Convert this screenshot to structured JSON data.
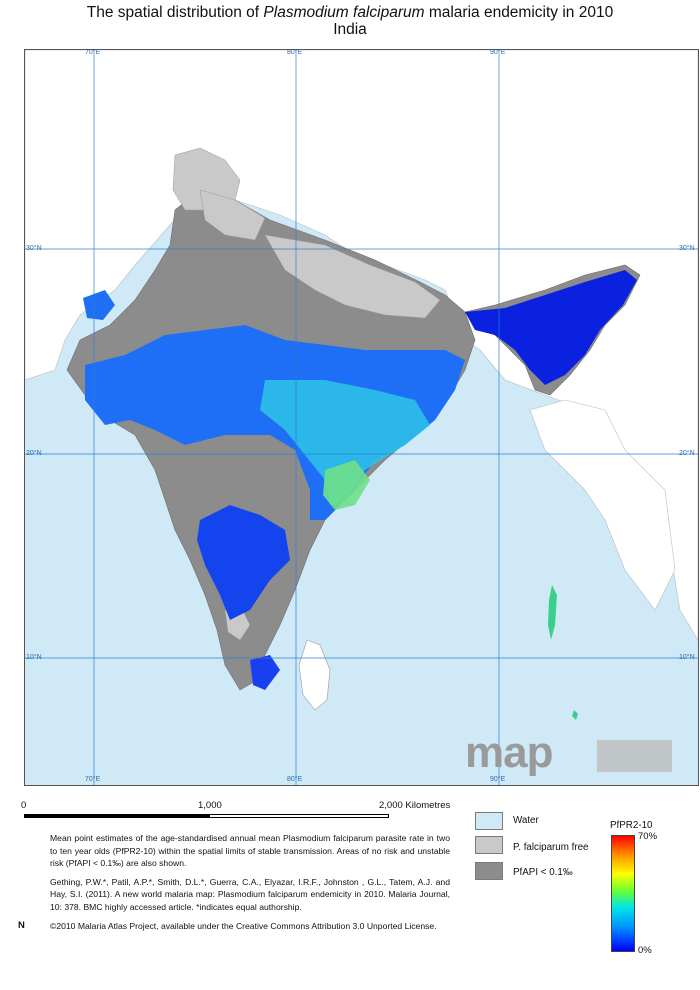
{
  "title": {
    "line1_pre": "The spatial distribution of ",
    "line1_italic": "Plasmodium falciparum",
    "line1_post": " malaria endemicity in 2010",
    "line2": "India"
  },
  "map": {
    "grid_labels": {
      "lon_70": "70°E",
      "lon_80": "80°E",
      "lon_90": "90°E",
      "lat_30": "30°N",
      "lat_20": "20°N",
      "lat_10": "10°N"
    },
    "watermark": "map",
    "colors": {
      "water": "#cfe9f7",
      "pf_free": "#c9c9c9",
      "api_low": "#8c8c8c",
      "land_outside": "#ffffff"
    }
  },
  "scale_bar": {
    "start": "0",
    "mid": "1,000",
    "end": "2,000  Kilometres"
  },
  "description": {
    "para1": "Mean point estimates of the age-standardised annual mean Plasmodium falciparum parasite rate in two to ten year olds (PfPR2-10) within the spatial limits of stable transmission. Areas of no risk and unstable risk (PfAPI < 0.1‰) are also shown.",
    "para2": "Gething, P.W.*, Patil, A.P.*, Smith, D.L.*, Guerra, C.A., Elyazar, I.R.F., Johnston , G.L., Tatem, A.J. and Hay, S.I. (2011). A new world malaria map: Plasmodium falciparum endemicity in 2010. Malaria Journal, 10: 378. BMC highly accessed article. *indicates equal authorship.",
    "para3": "©2010 Malaria Atlas Project, available under the Creative Commons Attribution 3.0 Unported License."
  },
  "north_label": "N",
  "legend": {
    "water": "Water",
    "pf_free": "P. falciparum free",
    "api": "PfAPI < 0.1‰"
  },
  "colorbar": {
    "title": "PfPR2-10",
    "max_label": "70%",
    "min_label": "0%"
  }
}
